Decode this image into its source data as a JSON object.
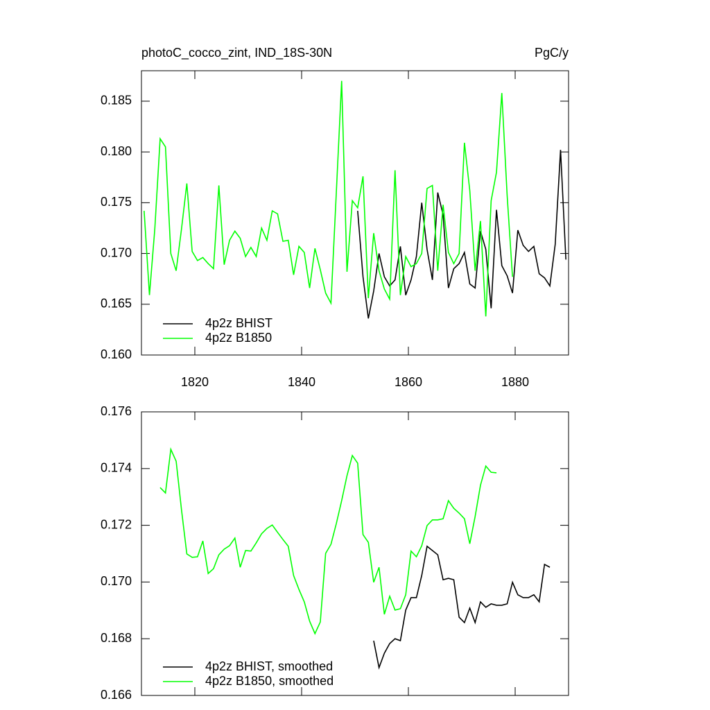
{
  "chart_data": [
    {
      "type": "line",
      "title": "photoC_cocco_zint, IND_18S-30N",
      "units": "PgC/y",
      "xlim": [
        1810,
        1890
      ],
      "xticks": [
        1820,
        1840,
        1860,
        1880
      ],
      "ylim": [
        0.16,
        0.188
      ],
      "yticks": [
        {
          "value": 0.16,
          "label": "0.160"
        },
        0.165,
        {
          "value": 0.17,
          "label": "0.170"
        },
        0.175,
        {
          "value": 0.18,
          "label": "0.180"
        },
        0.185
      ],
      "series": [
        {
          "name": "4p2z BHIST",
          "color": "#000000",
          "x": [
            1850.5,
            1851.5,
            1852.5,
            1853.5,
            1854.5,
            1855.5,
            1856.5,
            1857.5,
            1858.5,
            1859.5,
            1860.5,
            1861.5,
            1862.5,
            1863.5,
            1864.5,
            1865.5,
            1866.5,
            1867.5,
            1868.5,
            1869.5,
            1870.5,
            1871.5,
            1872.5,
            1873.5,
            1874.5,
            1875.5,
            1876.5,
            1877.5,
            1878.5,
            1879.5,
            1880.5,
            1881.5,
            1882.5,
            1883.5,
            1884.5,
            1885.5,
            1886.5,
            1887.5,
            1888.5,
            1889.5
          ],
          "values": [
            0.1742,
            0.1677,
            0.1636,
            0.1663,
            0.17,
            0.1677,
            0.1668,
            0.1674,
            0.1707,
            0.1659,
            0.1674,
            0.1697,
            0.175,
            0.1704,
            0.1674,
            0.176,
            0.1738,
            0.1666,
            0.1685,
            0.169,
            0.1701,
            0.167,
            0.1666,
            0.1722,
            0.1704,
            0.1646,
            0.1743,
            0.1688,
            0.1678,
            0.1661,
            0.1723,
            0.1708,
            0.1702,
            0.1707,
            0.168,
            0.1676,
            0.1668,
            0.1709,
            0.1802,
            0.1694
          ]
        },
        {
          "name": "4p2z B1850",
          "color": "#00ff00",
          "x": [
            1810.5,
            1811.5,
            1812.5,
            1813.5,
            1814.5,
            1815.5,
            1816.5,
            1817.5,
            1818.5,
            1819.5,
            1820.5,
            1821.5,
            1822.5,
            1823.5,
            1824.5,
            1825.5,
            1826.5,
            1827.5,
            1828.5,
            1829.5,
            1830.5,
            1831.5,
            1832.5,
            1833.5,
            1834.5,
            1835.5,
            1836.5,
            1837.5,
            1838.5,
            1839.5,
            1840.5,
            1841.5,
            1842.5,
            1843.5,
            1844.5,
            1845.5,
            1846.5,
            1847.5,
            1848.5,
            1849.5,
            1850.5,
            1851.5,
            1852.5,
            1853.5,
            1854.5,
            1855.5,
            1856.5,
            1857.5,
            1858.5,
            1859.5,
            1860.5,
            1861.5,
            1862.5,
            1863.5,
            1864.5,
            1865.5,
            1866.5,
            1867.5,
            1868.5,
            1869.5,
            1870.5,
            1871.5,
            1872.5,
            1873.5,
            1874.5,
            1875.5,
            1876.5,
            1877.5,
            1878.5,
            1879.5
          ],
          "values": [
            0.1742,
            0.1659,
            0.1724,
            0.1813,
            0.1805,
            0.17,
            0.1683,
            0.1724,
            0.1769,
            0.1702,
            0.1693,
            0.1696,
            0.169,
            0.1685,
            0.1767,
            0.1689,
            0.1713,
            0.1722,
            0.1715,
            0.1697,
            0.1706,
            0.1697,
            0.1725,
            0.1713,
            0.1742,
            0.1739,
            0.1712,
            0.1713,
            0.1679,
            0.1707,
            0.1701,
            0.1666,
            0.1705,
            0.1684,
            0.1661,
            0.1651,
            0.176,
            0.187,
            0.1682,
            0.1752,
            0.1745,
            0.1776,
            0.1656,
            0.172,
            0.1683,
            0.1665,
            0.1655,
            0.1782,
            0.1659,
            0.1697,
            0.1687,
            0.169,
            0.17,
            0.1764,
            0.1767,
            0.1683,
            0.1748,
            0.1701,
            0.169,
            0.17,
            0.1809,
            0.1762,
            0.1683,
            0.1732,
            0.1638,
            0.1752,
            0.178,
            0.1858,
            0.1757,
            0.1677
          ]
        }
      ]
    },
    {
      "type": "line",
      "xlim": [
        1810,
        1890
      ],
      "ylim": [
        0.166,
        0.176
      ],
      "yticks": [
        0.166,
        0.168,
        {
          "value": 0.17,
          "label": "0.170"
        },
        0.172,
        0.174,
        0.176
      ],
      "series": [
        {
          "name": "4p2z BHIST, smoothed",
          "color": "#000000",
          "x": [
            1853.5,
            1854.5,
            1855.5,
            1856.5,
            1857.5,
            1858.5,
            1859.5,
            1860.5,
            1861.5,
            1862.5,
            1863.5,
            1864.5,
            1865.5,
            1866.5,
            1867.5,
            1868.5,
            1869.5,
            1870.5,
            1871.5,
            1872.5,
            1873.5,
            1874.5,
            1875.5,
            1876.5,
            1877.5,
            1878.5,
            1879.5,
            1880.5,
            1881.5,
            1882.5,
            1883.5,
            1884.5,
            1885.5,
            1886.5
          ],
          "values": [
            0.16793,
            0.16698,
            0.16749,
            0.16783,
            0.168,
            0.16793,
            0.16901,
            0.16945,
            0.16945,
            0.17023,
            0.17126,
            0.17111,
            0.17096,
            0.17008,
            0.17013,
            0.17008,
            0.16876,
            0.16857,
            0.16908,
            0.16857,
            0.1693,
            0.16911,
            0.16923,
            0.16918,
            0.16918,
            0.16923,
            0.16999,
            0.16955,
            0.16945,
            0.16945,
            0.16955,
            0.1693,
            0.17062,
            0.17052
          ]
        },
        {
          "name": "4p2z B1850, smoothed",
          "color": "#00ff00",
          "x": [
            1813.5,
            1814.5,
            1815.5,
            1816.5,
            1817.5,
            1818.5,
            1819.5,
            1820.5,
            1821.5,
            1822.5,
            1823.5,
            1824.5,
            1825.5,
            1826.5,
            1827.5,
            1828.5,
            1829.5,
            1830.5,
            1831.5,
            1832.5,
            1833.5,
            1834.5,
            1835.5,
            1836.5,
            1837.5,
            1838.5,
            1839.5,
            1840.5,
            1841.5,
            1842.5,
            1843.5,
            1844.5,
            1845.5,
            1846.5,
            1847.5,
            1848.5,
            1849.5,
            1850.5,
            1851.5,
            1852.5,
            1853.5,
            1854.5,
            1855.5,
            1856.5,
            1857.5,
            1858.5,
            1859.5,
            1860.5,
            1861.5,
            1862.5,
            1863.5,
            1864.5,
            1865.5,
            1866.5,
            1867.5,
            1868.5,
            1869.5,
            1870.5,
            1871.5,
            1872.5,
            1873.5,
            1874.5,
            1875.5,
            1876.5
          ],
          "values": [
            0.17333,
            0.17314,
            0.17468,
            0.17426,
            0.17255,
            0.17099,
            0.17087,
            0.17089,
            0.17145,
            0.1703,
            0.17047,
            0.17096,
            0.17116,
            0.17128,
            0.17155,
            0.17052,
            0.17111,
            0.17109,
            0.17138,
            0.1717,
            0.17189,
            0.17201,
            0.17175,
            0.1715,
            0.17126,
            0.17023,
            0.16974,
            0.1693,
            0.16862,
            0.16818,
            0.16859,
            0.17101,
            0.17133,
            0.17206,
            0.17287,
            0.17375,
            0.17446,
            0.17419,
            0.17167,
            0.1714,
            0.16999,
            0.17052,
            0.16886,
            0.1695,
            0.16901,
            0.16906,
            0.16955,
            0.17109,
            0.17089,
            0.17128,
            0.17199,
            0.17219,
            0.17219,
            0.17223,
            0.17287,
            0.1726,
            0.17243,
            0.17223,
            0.17135,
            0.17231,
            0.17341,
            0.17409,
            0.17387,
            0.17385
          ]
        }
      ]
    }
  ]
}
